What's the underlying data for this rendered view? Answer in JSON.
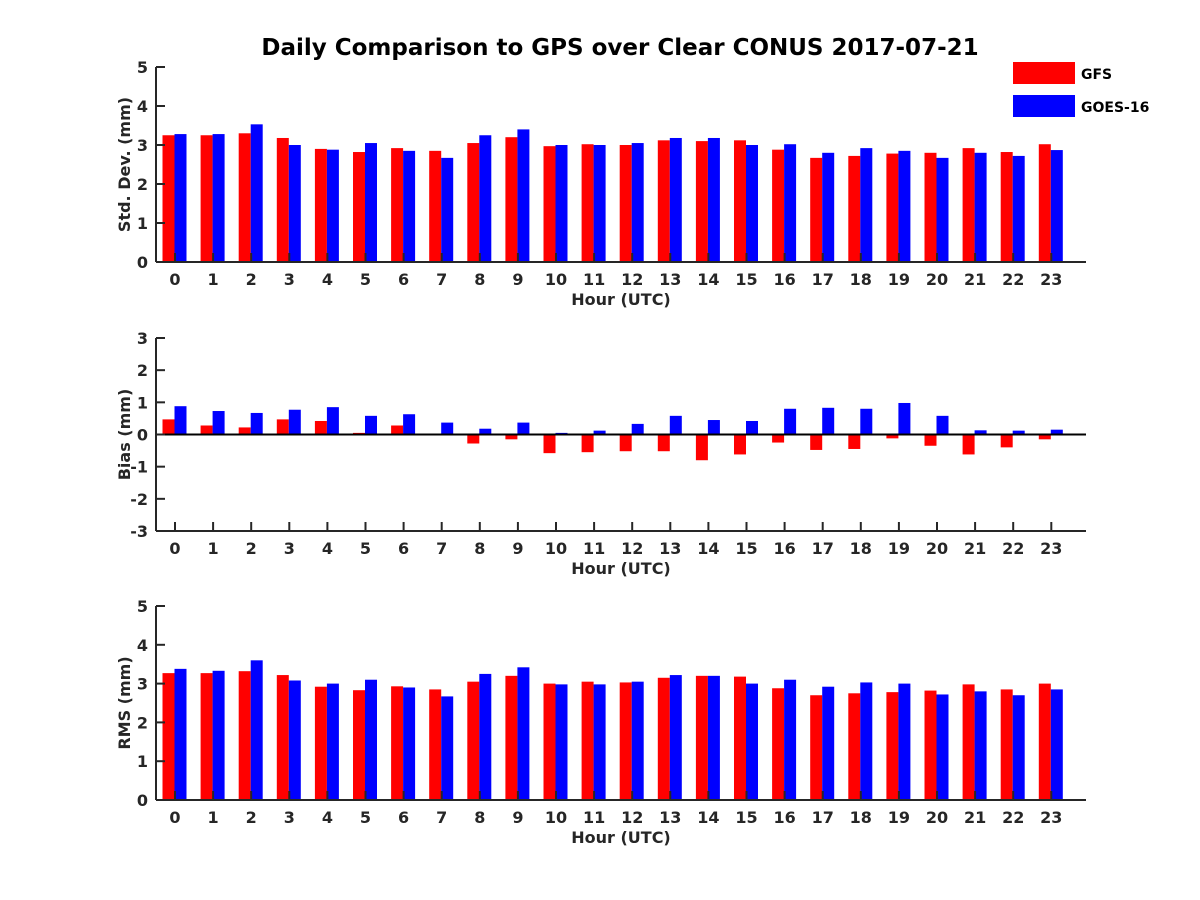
{
  "title": "Daily Comparison to GPS over Clear CONUS 2017-07-21",
  "legend": [
    {
      "name": "GFS",
      "color": "#ff0000"
    },
    {
      "name": "GOES-16",
      "color": "#0000ff"
    }
  ],
  "chart_data": [
    {
      "type": "bar",
      "title": "Daily Comparison to GPS over Clear CONUS 2017-07-21",
      "xlabel": "Hour (UTC)",
      "ylabel": "Std. Dev. (mm)",
      "ylim": [
        0,
        5
      ],
      "yticks": [
        "0",
        "1",
        "2",
        "3",
        "4",
        "5"
      ],
      "categories": [
        "0",
        "1",
        "2",
        "3",
        "4",
        "5",
        "6",
        "7",
        "8",
        "9",
        "10",
        "11",
        "12",
        "13",
        "14",
        "15",
        "16",
        "17",
        "18",
        "19",
        "20",
        "21",
        "22",
        "23"
      ],
      "series": [
        {
          "name": "GFS",
          "color": "#ff0000",
          "values": [
            3.25,
            3.25,
            3.3,
            3.18,
            2.9,
            2.82,
            2.92,
            2.85,
            3.05,
            3.2,
            2.97,
            3.02,
            3.0,
            3.12,
            3.1,
            3.12,
            2.88,
            2.67,
            2.72,
            2.78,
            2.8,
            2.92,
            2.82,
            3.02
          ]
        },
        {
          "name": "GOES-16",
          "color": "#0000ff",
          "values": [
            3.28,
            3.28,
            3.53,
            3.0,
            2.88,
            3.05,
            2.85,
            2.67,
            3.25,
            3.4,
            3.0,
            3.0,
            3.05,
            3.18,
            3.18,
            3.0,
            3.02,
            2.8,
            2.92,
            2.85,
            2.67,
            2.8,
            2.72,
            2.87
          ]
        }
      ]
    },
    {
      "type": "bar",
      "title": "",
      "xlabel": "Hour (UTC)",
      "ylabel": "Bias (mm)",
      "ylim": [
        -3,
        3
      ],
      "yticks": [
        "-3",
        "-2",
        "-1",
        "0",
        "1",
        "2",
        "3"
      ],
      "categories": [
        "0",
        "1",
        "2",
        "3",
        "4",
        "5",
        "6",
        "7",
        "8",
        "9",
        "10",
        "11",
        "12",
        "13",
        "14",
        "15",
        "16",
        "17",
        "18",
        "19",
        "20",
        "21",
        "22",
        "23"
      ],
      "series": [
        {
          "name": "GFS",
          "color": "#ff0000",
          "values": [
            0.47,
            0.28,
            0.22,
            0.47,
            0.42,
            0.05,
            0.28,
            0.0,
            -0.28,
            -0.15,
            -0.58,
            -0.55,
            -0.52,
            -0.52,
            -0.8,
            -0.62,
            -0.25,
            -0.48,
            -0.45,
            -0.12,
            -0.35,
            -0.62,
            -0.4,
            -0.15
          ]
        },
        {
          "name": "GOES-16",
          "color": "#0000ff",
          "values": [
            0.88,
            0.73,
            0.67,
            0.77,
            0.85,
            0.58,
            0.63,
            0.37,
            0.18,
            0.37,
            0.05,
            0.12,
            0.33,
            0.58,
            0.45,
            0.42,
            0.8,
            0.83,
            0.8,
            0.98,
            0.58,
            0.13,
            0.12,
            0.15
          ]
        }
      ]
    },
    {
      "type": "bar",
      "title": "",
      "xlabel": "Hour (UTC)",
      "ylabel": "RMS (mm)",
      "ylim": [
        0,
        5
      ],
      "yticks": [
        "0",
        "1",
        "2",
        "3",
        "4",
        "5"
      ],
      "categories": [
        "0",
        "1",
        "2",
        "3",
        "4",
        "5",
        "6",
        "7",
        "8",
        "9",
        "10",
        "11",
        "12",
        "13",
        "14",
        "15",
        "16",
        "17",
        "18",
        "19",
        "20",
        "21",
        "22",
        "23"
      ],
      "series": [
        {
          "name": "GFS",
          "color": "#ff0000",
          "values": [
            3.27,
            3.27,
            3.32,
            3.22,
            2.92,
            2.83,
            2.93,
            2.85,
            3.05,
            3.2,
            3.0,
            3.05,
            3.03,
            3.15,
            3.2,
            3.18,
            2.88,
            2.7,
            2.75,
            2.78,
            2.82,
            2.98,
            2.85,
            3.0
          ]
        },
        {
          "name": "GOES-16",
          "color": "#0000ff",
          "values": [
            3.38,
            3.33,
            3.6,
            3.08,
            3.0,
            3.1,
            2.9,
            2.67,
            3.25,
            3.42,
            2.98,
            2.98,
            3.05,
            3.22,
            3.2,
            3.0,
            3.1,
            2.92,
            3.03,
            3.0,
            2.72,
            2.8,
            2.7,
            2.85
          ]
        }
      ]
    }
  ]
}
